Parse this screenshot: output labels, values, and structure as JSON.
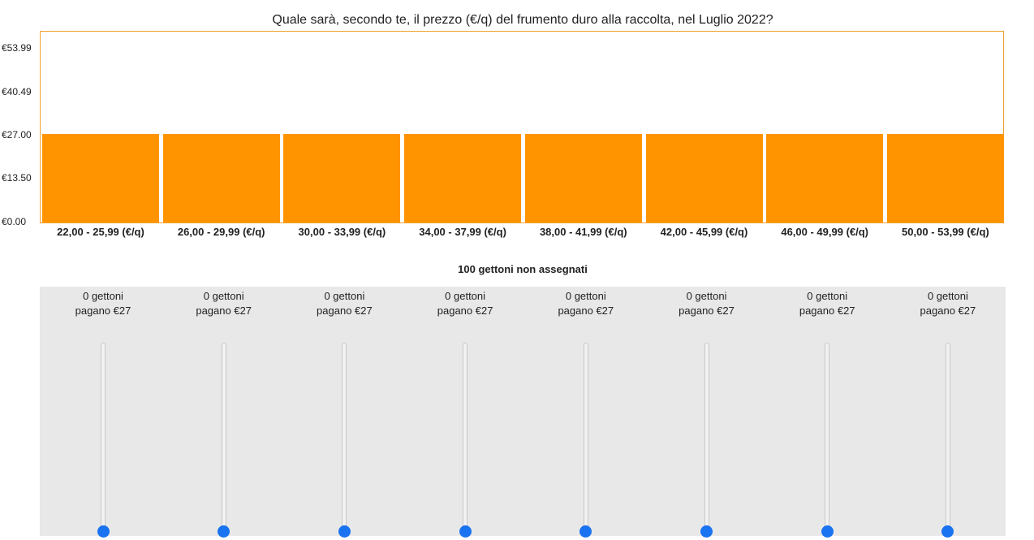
{
  "question": "Quale sarà, secondo te, il prezzo (€/q) del frumento duro alla raccolta, nel Luglio 2022?",
  "unassigned_label": "100 gettoni non assegnati",
  "colors": {
    "bar": "#ff9400",
    "slider_thumb": "#1a73f0",
    "chart_border": "#f0a030",
    "panel_bg": "#e8e8e8"
  },
  "chart_data": {
    "type": "bar",
    "categories": [
      "22,00 - 25,99 (€/q)",
      "26,00 - 29,99 (€/q)",
      "30,00 - 33,99 (€/q)",
      "34,00 - 37,99 (€/q)",
      "38,00 - 41,99 (€/q)",
      "42,00 - 45,99 (€/q)",
      "46,00 - 49,99 (€/q)",
      "50,00 - 53,99 (€/q)"
    ],
    "values": [
      27,
      27,
      27,
      27,
      27,
      27,
      27,
      27
    ],
    "ytick_labels": [
      "€0.00",
      "€13.50",
      "€27.00",
      "€40.49",
      "€53.99"
    ],
    "ytick_values": [
      0,
      13.5,
      27.0,
      40.49,
      53.99
    ],
    "ylim": [
      0,
      53.99
    ],
    "grid": false
  },
  "allocations": [
    {
      "tokens_label": "0 gettoni",
      "pay_label": "pagano €27",
      "tokens": 0
    },
    {
      "tokens_label": "0 gettoni",
      "pay_label": "pagano €27",
      "tokens": 0
    },
    {
      "tokens_label": "0 gettoni",
      "pay_label": "pagano €27",
      "tokens": 0
    },
    {
      "tokens_label": "0 gettoni",
      "pay_label": "pagano €27",
      "tokens": 0
    },
    {
      "tokens_label": "0 gettoni",
      "pay_label": "pagano €27",
      "tokens": 0
    },
    {
      "tokens_label": "0 gettoni",
      "pay_label": "pagano €27",
      "tokens": 0
    },
    {
      "tokens_label": "0 gettoni",
      "pay_label": "pagano €27",
      "tokens": 0
    },
    {
      "tokens_label": "0 gettoni",
      "pay_label": "pagano €27",
      "tokens": 0
    }
  ]
}
